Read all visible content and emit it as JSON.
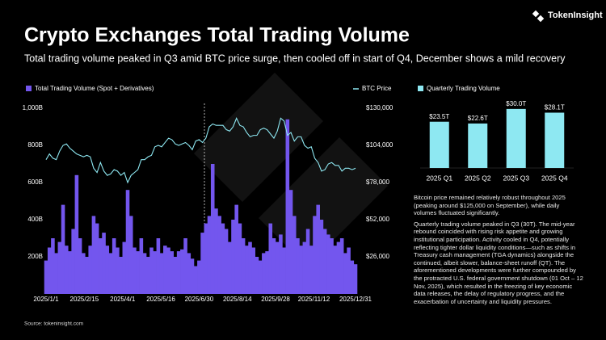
{
  "brand": "TokenInsight",
  "title": "Crypto Exchanges Total Trading Volume",
  "subtitle": "Total trading volume peaked in Q3 amid BTC price surge, then cooled off in start of Q4, December shows a mild recovery",
  "notes": [
    "Bitcoin price remained relatively robust throughout 2025 (peaking around $125,000 on September), while daily volumes fluctuated significantly.",
    "Quarterly trading volume peaked in Q3 (30T). The mid-year rebound coincided with rising risk appetite and growing institutional participation. Activity cooled in Q4, potentially reflecting tighter dollar liquidity conditions—such as shifts in Treasury cash management (TGA dynamics) alongside the continued, albeit slower, balance-sheet runoff (QT). The aforementioned developments were further compounded by the protracted U.S. federal government shutdown (01 Oct – 12 Nov, 2025), which resulted in the freezing of key economic data releases, the delay of regulatory progress, and the exacerbation of uncertainty and liquidity pressures."
  ],
  "source": "Source: tokeninsight.com",
  "chart_data": [
    {
      "type": "combo",
      "legend": "top",
      "x": [
        0,
        4,
        8,
        12,
        16,
        20,
        24,
        28,
        32,
        36,
        40,
        44,
        48,
        52,
        56,
        60,
        64,
        68,
        72,
        76,
        80,
        84,
        88,
        92,
        96,
        100,
        104,
        108,
        112,
        116,
        120,
        124,
        128,
        132,
        136,
        140,
        144,
        148,
        152,
        156,
        160,
        164,
        168,
        172,
        176,
        180,
        184,
        188,
        192,
        196,
        200,
        204,
        208,
        212,
        216,
        220,
        224,
        228,
        232,
        236,
        240,
        244,
        248,
        252,
        256,
        260,
        264,
        268,
        272,
        276,
        280,
        284,
        288,
        292,
        296,
        300,
        304,
        308,
        312,
        316,
        320,
        324,
        328,
        332,
        336,
        340,
        344,
        348,
        352,
        356,
        360,
        364
      ],
      "xlim": [
        0,
        364
      ],
      "xticks": [
        {
          "value": 0,
          "label": "2025/1/1"
        },
        {
          "value": 45,
          "label": "2025/2/15"
        },
        {
          "value": 90,
          "label": "2025/4/1"
        },
        {
          "value": 135,
          "label": "2025/5/16"
        },
        {
          "value": 180,
          "label": "2025/6/30"
        },
        {
          "value": 225,
          "label": "2025/8/14"
        },
        {
          "value": 270,
          "label": "2025/9/28"
        },
        {
          "value": 315,
          "label": "2025/11/12"
        },
        {
          "value": 364,
          "label": "2025/12/31"
        }
      ],
      "ylim": [
        0,
        1000
      ],
      "yticks": [
        {
          "value": 200,
          "label": "200B"
        },
        {
          "value": 400,
          "label": "400B"
        },
        {
          "value": 600,
          "label": "600B"
        },
        {
          "value": 800,
          "label": "800B"
        },
        {
          "value": 1000,
          "label": "1,000B"
        }
      ],
      "y2lim": [
        0,
        130000
      ],
      "y2ticks": [
        {
          "value": 26000,
          "label": "$26,000"
        },
        {
          "value": 52000,
          "label": "$52,000"
        },
        {
          "value": 78000,
          "label": "$78,000"
        },
        {
          "value": 104000,
          "label": "$104,000"
        },
        {
          "value": 130000,
          "label": "$130,000"
        }
      ],
      "series": [
        {
          "name": "Total Trading Volume (Spot + Derivatives)",
          "type": "bar",
          "color": "#7356ee",
          "values": [
            180,
            250,
            300,
            220,
            280,
            480,
            260,
            230,
            350,
            640,
            300,
            220,
            200,
            260,
            420,
            380,
            300,
            330,
            260,
            220,
            300,
            250,
            200,
            280,
            560,
            420,
            250,
            230,
            300,
            220,
            200,
            250,
            230,
            300,
            220,
            260,
            250,
            230,
            200,
            230,
            240,
            300,
            220,
            190,
            150,
            180,
            330,
            380,
            420,
            700,
            460,
            420,
            380,
            350,
            280,
            400,
            480,
            380,
            300,
            260,
            280,
            250,
            200,
            180,
            220,
            230,
            380,
            300,
            280,
            320,
            250,
            940,
            560,
            420,
            300,
            260,
            280,
            350,
            260,
            420,
            480,
            400,
            350,
            320,
            300,
            260,
            280,
            300,
            220,
            250,
            180,
            160
          ]
        },
        {
          "name": "BTC Price",
          "type": "line",
          "axis": "y2",
          "color": "#8ee8f2",
          "values": [
            94000,
            98000,
            95000,
            94000,
            100000,
            104000,
            105000,
            102000,
            100000,
            98000,
            97000,
            96000,
            97000,
            96000,
            88000,
            85000,
            92000,
            86000,
            83000,
            84000,
            87000,
            86000,
            83000,
            85000,
            78000,
            83000,
            85000,
            87000,
            94000,
            94000,
            96000,
            97000,
            103000,
            104000,
            103000,
            106000,
            109000,
            108000,
            105000,
            104000,
            105000,
            106000,
            104000,
            101000,
            107000,
            108000,
            106000,
            109000,
            117000,
            119000,
            118000,
            118000,
            118000,
            115000,
            114000,
            117000,
            123000,
            118000,
            117000,
            113000,
            110000,
            111000,
            111000,
            115000,
            116000,
            115000,
            112000,
            109000,
            114000,
            123000,
            121000,
            111000,
            113000,
            107000,
            110000,
            110000,
            104000,
            102000,
            103000,
            95000,
            92000,
            86000,
            87000,
            91000,
            92000,
            90000,
            90000,
            86000,
            88000,
            88000,
            87000,
            88000
          ]
        }
      ]
    },
    {
      "type": "bar",
      "categories": [
        "2025 Q1",
        "2025 Q2",
        "2025 Q3",
        "2025 Q4"
      ],
      "ylim": [
        0,
        32
      ],
      "series": [
        {
          "name": "Quarterly Trading Volume",
          "color": "#8ee8f2",
          "values": [
            23.5,
            22.6,
            30.0,
            28.1
          ],
          "value_labels": [
            "$23.5T",
            "$22.6T",
            "$30.0T",
            "$28.1T"
          ]
        }
      ]
    }
  ]
}
